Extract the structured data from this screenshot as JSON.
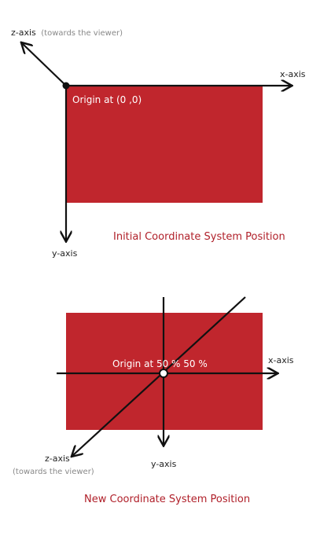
{
  "diagram1": {
    "z_axis_label": "z-axis",
    "z_axis_note": "(towards the viewer)",
    "x_axis_label": "x-axis",
    "y_axis_label": "y-axis",
    "origin_label": "Origin at (0 ,0)",
    "caption": "Initial Coordinate System Position"
  },
  "diagram2": {
    "x_axis_label": "x-axis",
    "y_axis_label": "y-axis",
    "z_axis_label": "z-axis",
    "z_axis_note": "(towards the viewer)",
    "origin_label": "Origin at 50 % 50 %",
    "caption": "New Coordinate System Position"
  },
  "colors": {
    "element_fill": "#c0262d",
    "axis_color": "#111111",
    "caption_color": "#b0202a",
    "label_color": "#222222",
    "note_color": "#888888",
    "origin_text_color": "#ffffff"
  }
}
